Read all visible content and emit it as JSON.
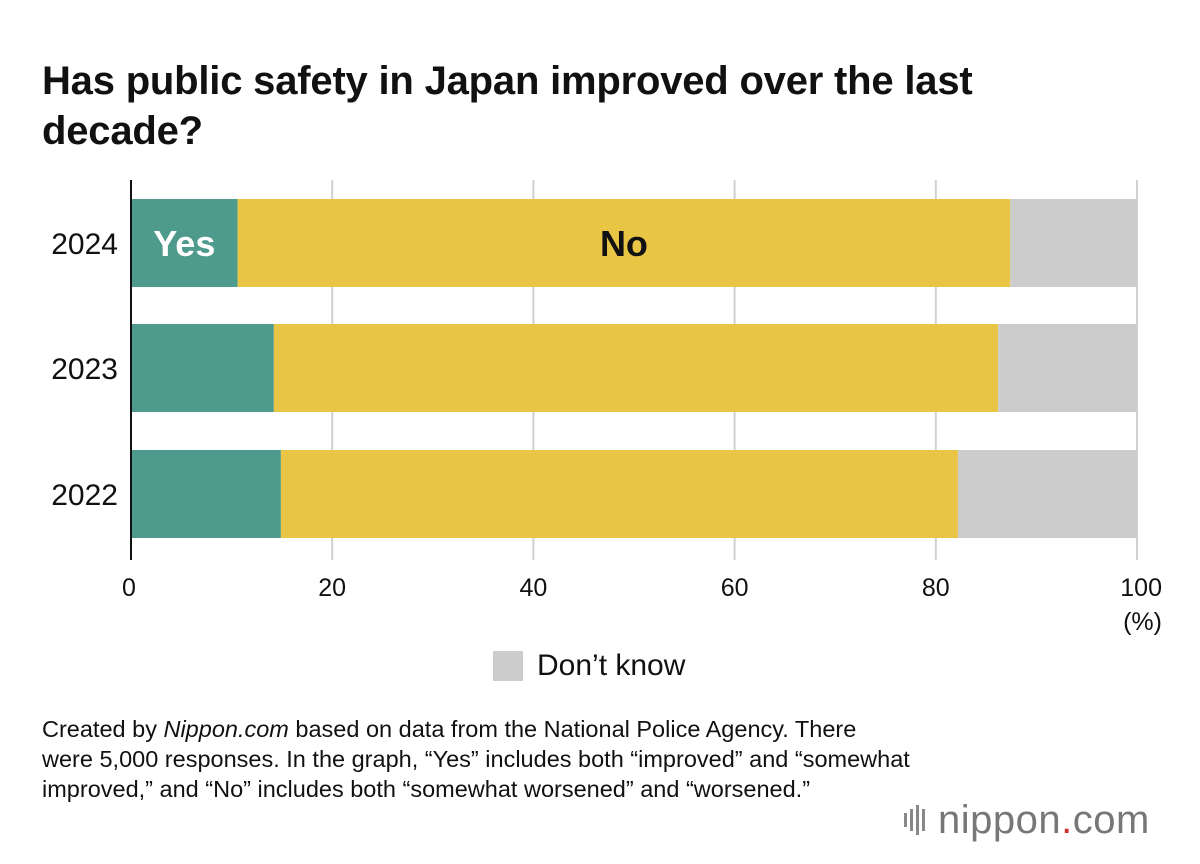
{
  "chart_data": {
    "type": "bar",
    "orientation": "horizontal",
    "stacked": true,
    "title": "Has public safety in Japan improved over the last decade?",
    "categories": [
      "2024",
      "2023",
      "2022"
    ],
    "series": [
      {
        "name": "Yes",
        "color": "#4e9a8c",
        "values": [
          10.6,
          14.2,
          14.9
        ]
      },
      {
        "name": "No",
        "color": "#e9c545",
        "values": [
          76.8,
          72.0,
          67.3
        ]
      },
      {
        "name": "Don’t know",
        "color": "#cccccc",
        "values": [
          12.6,
          13.8,
          17.8
        ]
      }
    ],
    "inline_labels": {
      "yes": "Yes",
      "no": "No"
    },
    "xticks": [
      "0",
      "20",
      "40",
      "60",
      "80",
      "100"
    ],
    "xlim": [
      0,
      100
    ],
    "xunit": "(%)",
    "grid": true,
    "legend": {
      "label": "Don’t know",
      "placement": "bottom-center"
    }
  },
  "footnote": {
    "prefix": "Created by ",
    "source_name": "Nippon.com",
    "suffix": " based on data from the National Police Agency. There were 5,000 responses. In the graph, “Yes” includes both “improved” and “somewhat improved,” and “No” includes both “somewhat worsened” and “worsened.”"
  },
  "brand": {
    "name": "nippon",
    "dot": ".",
    "tld": "com"
  },
  "colors": {
    "yes": "#4e9a8c",
    "no": "#e9c545",
    "dont_know": "#cccccc",
    "grid": "#d0d0d0",
    "axis": "#111111"
  }
}
